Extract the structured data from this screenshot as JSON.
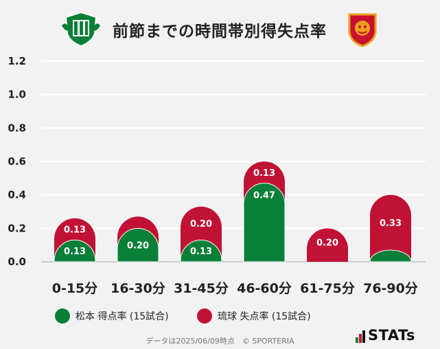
{
  "header": {
    "title": "前節までの時間帯別得失点率"
  },
  "colors": {
    "series1": "#0a7f38",
    "series2": "#c01235",
    "grid": "#ffffff",
    "axis": "#cccccc"
  },
  "chart_data": {
    "type": "bar",
    "title": "前節までの時間帯別得失点率",
    "categories": [
      "0-15分",
      "16-30分",
      "31-45分",
      "46-60分",
      "61-75分",
      "76-90分"
    ],
    "series": [
      {
        "name": "松本 得点率 (15試合)",
        "values": [
          0.13,
          0.2,
          0.13,
          0.47,
          0.0,
          0.07
        ],
        "labels": [
          "0.13",
          "0.20",
          "0.13",
          "0.47",
          "",
          ""
        ]
      },
      {
        "name": "琉球 失点率 (15試合)",
        "values": [
          0.13,
          0.07,
          0.2,
          0.13,
          0.2,
          0.33
        ],
        "labels": [
          "0.13",
          "",
          "0.20",
          "0.13",
          "0.20",
          "0.33"
        ]
      }
    ],
    "yticks": [
      "0.0",
      "0.2",
      "0.4",
      "0.6",
      "0.8",
      "1.0",
      "1.2"
    ],
    "ylim": [
      0,
      1.2
    ],
    "stacked": true,
    "grid": true,
    "legend_position": "bottom"
  },
  "legend": [
    {
      "label": "松本 得点率 (15試合)"
    },
    {
      "label": "琉球 失点率 (15試合)"
    }
  ],
  "footer": {
    "text": "データは2025/06/09時点　© SPORTERIA"
  },
  "brand": {
    "name": "STATs"
  }
}
